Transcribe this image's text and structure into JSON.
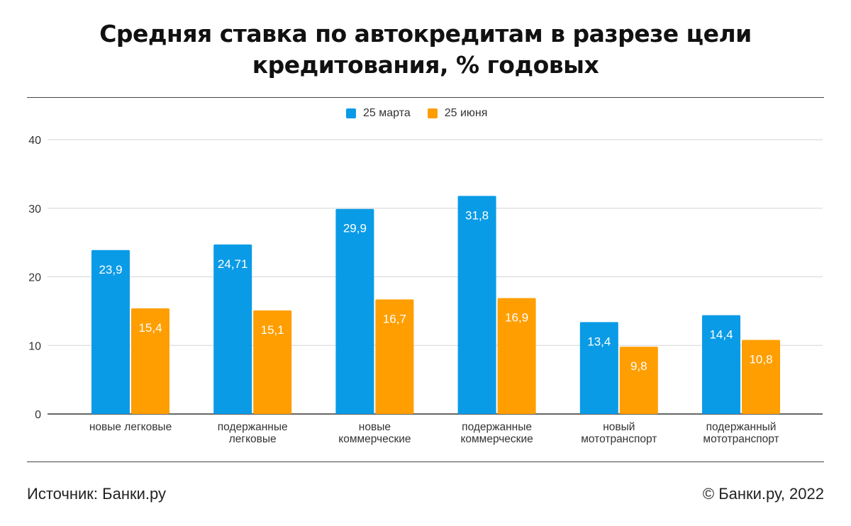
{
  "title_line1": "Средняя ставка по автокредитам в разрезе цели",
  "title_line2": "кредитования, % годовых",
  "footer": {
    "source": "Источник: Банки.ру",
    "copyright": "© Банки.ру, 2022"
  },
  "colors": {
    "march": "#0a9be6",
    "june": "#ff9e00"
  },
  "chart_data": {
    "type": "bar",
    "title": "Средняя ставка по автокредитам в разрезе цели кредитования, % годовых",
    "categories": [
      [
        "новые легковые"
      ],
      [
        "подержанные",
        "легковые"
      ],
      [
        "новые",
        "коммерческие"
      ],
      [
        "подержанные",
        "коммерческие"
      ],
      [
        "новый",
        "мототранспорт"
      ],
      [
        "подержанный",
        "мототранспорт"
      ]
    ],
    "series": [
      {
        "name": "25 марта",
        "values": [
          23.9,
          24.71,
          29.9,
          31.8,
          13.4,
          14.4
        ],
        "labels": [
          "23,9",
          "24,71",
          "29,9",
          "31,8",
          "13,4",
          "14,4"
        ]
      },
      {
        "name": "25 июня",
        "values": [
          15.4,
          15.1,
          16.7,
          16.9,
          9.8,
          10.8
        ],
        "labels": [
          "15,4",
          "15,1",
          "16,7",
          "16,9",
          "9,8",
          "10,8"
        ]
      }
    ],
    "ylim": [
      0,
      40
    ],
    "yticks": [
      0,
      10,
      20,
      30,
      40
    ],
    "grid": true,
    "legend": "top-center"
  }
}
